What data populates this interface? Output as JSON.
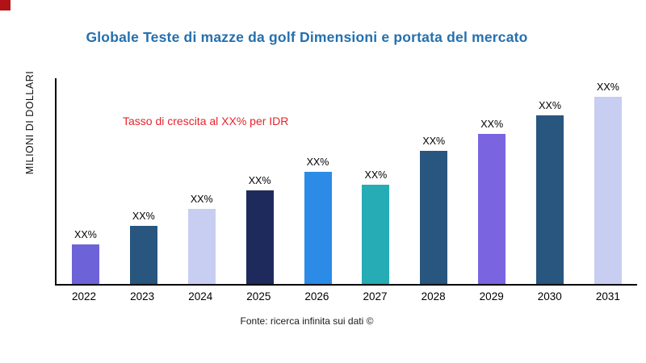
{
  "colors": {
    "title": "#2470ae",
    "annotation": "#e5242b",
    "corner_mark": "#b11216",
    "axis": "#000000"
  },
  "chart_data": {
    "type": "bar",
    "title": "Globale Teste di mazze da golf Dimensioni e portata del mercato",
    "ylabel": "MILIONI DI DOLLARI",
    "xlabel": "",
    "annotation": "Tasso di crescita al XX% per IDR",
    "source": "Fonte: ricerca infinita sui dati ©",
    "categories": [
      "2022",
      "2023",
      "2024",
      "2025",
      "2026",
      "2027",
      "2028",
      "2029",
      "2030",
      "2031"
    ],
    "values": [
      21,
      31,
      40,
      50,
      60,
      53,
      71,
      80,
      90,
      100
    ],
    "unit": "relative height (numeric axis unlabeled in chart)",
    "bar_labels": [
      "XX%",
      "XX%",
      "XX%",
      "XX%",
      "XX%",
      "XX%",
      "XX%",
      "XX%",
      "XX%",
      "XX%"
    ],
    "bar_colors": [
      "#6e62d9",
      "#28567f",
      "#c8cdf2",
      "#1f2a5c",
      "#2b8be6",
      "#25acb4",
      "#28567f",
      "#7a64e0",
      "#28567f",
      "#c8cdf2"
    ],
    "grid": false,
    "legend": false
  }
}
